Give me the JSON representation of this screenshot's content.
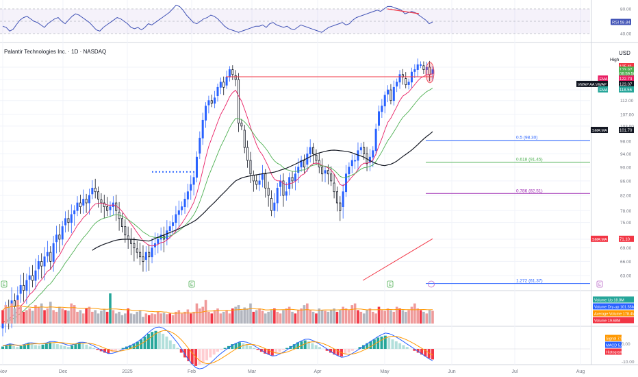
{
  "header": {
    "symbol_title": "Palantir Technologies Inc. · 1D · NASDAQ",
    "currency": "USD"
  },
  "chart_data": [
    {
      "type": "line",
      "panel": "rsi",
      "legend": "RSI",
      "current_value": 58.84,
      "y_ticks": [
        80.0,
        60.0,
        40.0
      ],
      "overbought_level": 80.0,
      "oversold_level": 40.0,
      "ylim": [
        30,
        90
      ],
      "values": [
        52,
        50,
        44,
        47,
        55,
        62,
        66,
        68,
        64,
        60,
        58,
        54,
        50,
        56,
        60,
        64,
        66,
        60,
        56,
        62,
        68,
        72,
        70,
        66,
        62,
        58,
        52,
        46,
        44,
        50,
        54,
        58,
        62,
        66,
        64,
        60,
        56,
        50,
        48,
        50,
        46,
        50,
        56,
        54,
        58,
        62,
        66,
        70,
        74,
        80,
        86,
        84,
        78,
        70,
        64,
        58,
        56,
        60,
        64,
        66,
        70,
        68,
        64,
        58,
        52,
        48,
        46,
        44,
        42,
        44,
        46,
        48,
        50,
        52,
        52,
        54,
        50,
        56,
        58,
        54,
        52,
        50,
        52,
        48,
        46,
        50,
        54,
        52,
        50,
        48,
        46,
        44,
        42,
        46,
        50,
        52,
        54,
        56,
        58,
        54,
        56,
        62,
        66,
        68,
        70,
        72,
        74,
        76,
        78,
        76,
        80,
        84,
        84,
        82,
        80,
        78,
        72,
        74,
        76,
        74,
        70,
        66,
        62,
        56,
        58.84
      ],
      "color": "#3f51b5"
    },
    {
      "type": "candlestick",
      "panel": "price",
      "title": "Palantir Technologies Inc. · 1D · NASDAQ",
      "ylabel": "USD",
      "ylim": [
        60.5,
        129
      ],
      "y_ticks": [
        63.0,
        66.0,
        69.0,
        71.0,
        75.0,
        78.0,
        82.0,
        86.0,
        90.0,
        94.0,
        98.0,
        103.0,
        107.0,
        112.0,
        116.0,
        120.0,
        125.0
      ],
      "x_ticks": [
        "Nov",
        "Dec",
        "2025",
        "Feb",
        "Mar",
        "Apr",
        "May",
        "Jun",
        "Jul",
        "Aug"
      ],
      "close": [
        54,
        56,
        55,
        58,
        57,
        59,
        61,
        60,
        62,
        63,
        62,
        64,
        66,
        65,
        67,
        68,
        66,
        70,
        72,
        71,
        74,
        76,
        75,
        77,
        78,
        80,
        79,
        81,
        80,
        82,
        84,
        83,
        81,
        80,
        79,
        78,
        79,
        80,
        78,
        76,
        74,
        72,
        71,
        70,
        69,
        68,
        67,
        66,
        68,
        67,
        69,
        70,
        71,
        72,
        71,
        73,
        74,
        75,
        77,
        78,
        79,
        81,
        83,
        85,
        87,
        93,
        99,
        105,
        110,
        112,
        111,
        113,
        117,
        119,
        117,
        121,
        124,
        122,
        120,
        104,
        103,
        96,
        92,
        88,
        86,
        85,
        86,
        88,
        84,
        82,
        78,
        80,
        84,
        86,
        82,
        83,
        87,
        86,
        88,
        90,
        92,
        90,
        94,
        96,
        94,
        92,
        90,
        88,
        89,
        88,
        86,
        83,
        80,
        78,
        83,
        88,
        90,
        92,
        92,
        95,
        96,
        94,
        91,
        93,
        95,
        102,
        108,
        110,
        114,
        116,
        112,
        117,
        119,
        122,
        121,
        118,
        119,
        123,
        124,
        126,
        126,
        124,
        125,
        122,
        123.97
      ],
      "high_label": "High",
      "horizontal_line": 121.1,
      "dotted_line": 88.6,
      "fib_levels": [
        {
          "label": "0.5 (98.30)",
          "value": 98.3,
          "color": "#2962ff"
        },
        {
          "label": "0.618 (91.45)",
          "value": 91.45,
          "color": "#4caf50"
        },
        {
          "label": "0.786 (82.51)",
          "value": 82.51,
          "color": "#9c27b0"
        },
        {
          "label": "1.272 (61.37)",
          "value": 61.37,
          "color": "#2962ff"
        }
      ],
      "price_tags": [
        {
          "label": "",
          "value": "125.41",
          "color": "#f23645",
          "price": 125.41
        },
        {
          "label": "",
          "value": "123.97",
          "color": "#4caf50",
          "price": 123.97
        },
        {
          "label": "",
          "value": "06:59:50",
          "color": "#4caf50",
          "price": 122.5
        },
        {
          "label": "EMA",
          "value": "122.73",
          "color": "#e91e63",
          "price": 120.4
        },
        {
          "label": "VWAP AA:VWAP",
          "value": "123.07",
          "color": "#131722",
          "price": 118.3
        },
        {
          "label": "EMA",
          "value": "118.56",
          "color": "#26a69a",
          "price": 116.2
        },
        {
          "label": "SMA:MA",
          "value": "101.70",
          "color": "#131722",
          "price": 101.7
        },
        {
          "label": "SMA:MA",
          "value": "71.10",
          "color": "#f23645",
          "price": 71.1
        }
      ]
    },
    {
      "type": "bar",
      "panel": "volume",
      "values": [
        40,
        55,
        50,
        60,
        45,
        70,
        50,
        35,
        40,
        45,
        38,
        55,
        50,
        60,
        40,
        45,
        65,
        40,
        35,
        50,
        45,
        40,
        38,
        60,
        55,
        35,
        40,
        30,
        45,
        50,
        35,
        40,
        30,
        38,
        42,
        35,
        90,
        40,
        30,
        35,
        25,
        30,
        45,
        30,
        28,
        35,
        40,
        20,
        30,
        25,
        30,
        28,
        35,
        30,
        32,
        28,
        30,
        25,
        35,
        40,
        30,
        35,
        42,
        30,
        35,
        60,
        45,
        50,
        70,
        35,
        30,
        40,
        45,
        30,
        35,
        40,
        30,
        45,
        50,
        55,
        40,
        48,
        45,
        60,
        35,
        40,
        45,
        38,
        30,
        35,
        40,
        45,
        35,
        30,
        40,
        45,
        50,
        35,
        30,
        40,
        45,
        55,
        60,
        40,
        35,
        30,
        45,
        40,
        38,
        35,
        40,
        45,
        35,
        40,
        50,
        45,
        40,
        55,
        60,
        40,
        35,
        30,
        40,
        45,
        35,
        30,
        50,
        40,
        38,
        45,
        40,
        35,
        50,
        45,
        40,
        35,
        40,
        50,
        60,
        45,
        40,
        35,
        30,
        40,
        38
      ],
      "legend_tags": [
        {
          "label": "Volume Up",
          "value": "18.8M",
          "color": "#26a69a"
        },
        {
          "label": "Volume Dry-up",
          "value": "101.55M",
          "color": "#2962ff"
        },
        {
          "label": "Average Volume",
          "value": "178.4M",
          "color": "#ff9800"
        },
        {
          "label": "Volume",
          "value": "19.68M",
          "color": "#f23645"
        }
      ]
    },
    {
      "type": "bar",
      "panel": "macd",
      "values": [
        0.5,
        0.8,
        1.0,
        0.6,
        0.4,
        0.6,
        0.9,
        1.2,
        1.0,
        0.8,
        0.7,
        0.9,
        1.1,
        1.4,
        1.2,
        1.0,
        0.8,
        0.6,
        0.4,
        0.7,
        1.0,
        1.3,
        1.1,
        0.9,
        0.5,
        0.2,
        -0.2,
        -0.5,
        -0.8,
        -1.0,
        -0.7,
        -0.4,
        -0.1,
        0.2,
        0.5,
        0.8,
        1.1,
        1.5,
        2.0,
        2.6,
        3.2,
        3.6,
        3.8,
        3.6,
        3.2,
        2.6,
        1.8,
        1.0,
        0.2,
        -0.8,
        -1.8,
        -2.6,
        -3.2,
        -3.6,
        -3.4,
        -3.0,
        -2.4,
        -1.8,
        -1.2,
        -0.6,
        -0.2,
        0.2,
        0.6,
        1.0,
        1.2,
        1.4,
        1.2,
        1.0,
        0.6,
        0.2,
        -0.2,
        -0.6,
        -1.0,
        -1.2,
        -1.4,
        -1.0,
        -0.6,
        -0.2,
        0.2,
        0.6,
        1.0,
        1.4,
        1.6,
        1.8,
        1.6,
        1.2,
        0.8,
        0.4,
        0.0,
        -0.4,
        -0.8,
        -1.2,
        -1.4,
        -1.6,
        -1.2,
        -0.8,
        -0.4,
        0.0,
        0.4,
        0.8,
        1.2,
        1.6,
        2.0,
        2.4,
        2.6,
        2.8,
        2.4,
        2.0,
        1.6,
        1.2,
        0.8,
        0.4,
        0.0,
        -0.4,
        -0.8,
        -1.2,
        -1.6,
        -2.0,
        -2.23
      ],
      "legend_tags": [
        {
          "label": "Signal",
          "value": "7.92",
          "color": "#ff9800"
        },
        {
          "label": "MACD",
          "value": "5.69",
          "color": "#2962ff"
        },
        {
          "label": "Histogram",
          "value": "-2.23",
          "color": "#f23645"
        }
      ],
      "y_ticks": [
        0.0,
        -10.0
      ]
    }
  ],
  "colors": {
    "up": "#2962ff",
    "down": "#131722",
    "ema_fast": "#e91e63",
    "ema_slow": "#4caf50",
    "sma": "#131722",
    "trend": "#f23645",
    "grid": "#f0f3fa",
    "axis_text": "#787b86",
    "rsi_band": "rgba(126,87,194,0.08)"
  },
  "icons": [
    "earnings-marker-icon",
    "dividend-marker-icon"
  ]
}
